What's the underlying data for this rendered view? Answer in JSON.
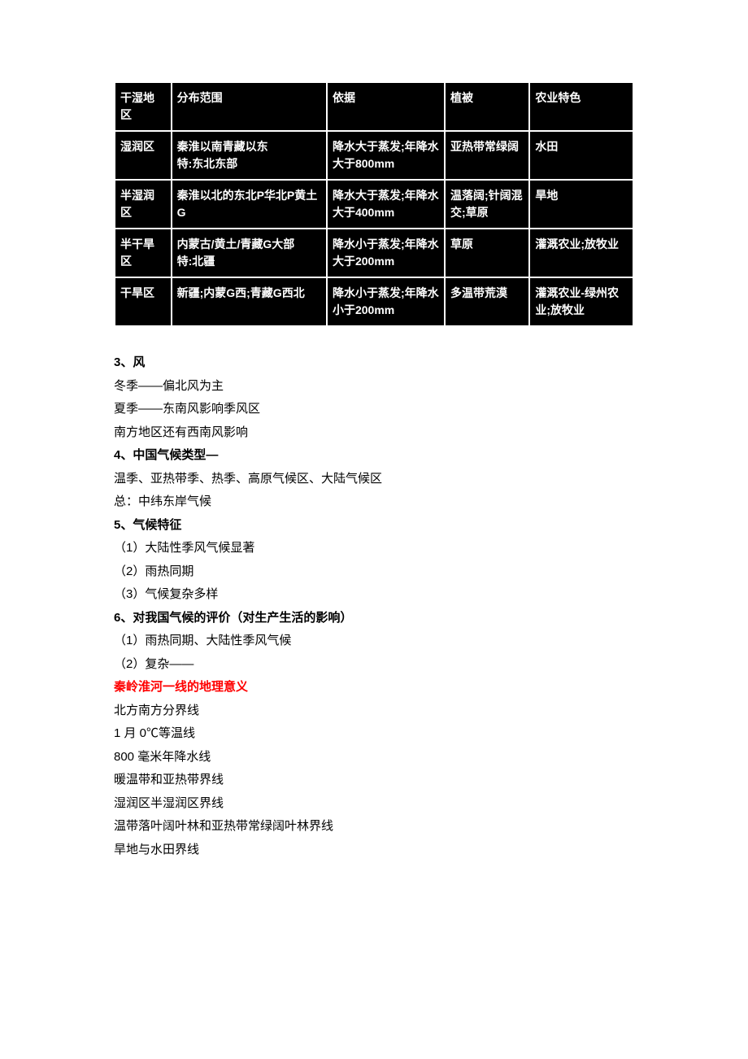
{
  "table": {
    "headers": [
      "干湿地区",
      "分布范围",
      "依据",
      "植被",
      "农业特色"
    ],
    "rows": [
      {
        "c1": "湿润区",
        "c2": "秦淮以南青藏以东\n特:东北东部",
        "c3": "降水大于蒸发;年降水大于800mm",
        "c4": "亚热带常绿阔",
        "c5": "水田"
      },
      {
        "c1": "半湿润区",
        "c2": "秦淮以北的东北P华北P黄土G",
        "c3": "降水大于蒸发;年降水大于400mm",
        "c4": "温落阔;针阔混交;草原",
        "c5": "旱地"
      },
      {
        "c1": "半干旱区",
        "c2": "内蒙古/黄土/青藏G大部\n特:北疆",
        "c3": "降水小于蒸发;年降水大于200mm",
        "c4": "草原",
        "c5": "灌溉农业;放牧业"
      },
      {
        "c1": "干旱区",
        "c2": "新疆;内蒙G西;青藏G西北",
        "c3": "降水小于蒸发;年降水小于200mm",
        "c4": "多温带荒漠",
        "c5": "灌溉农业-绿州农业;放牧业"
      }
    ]
  },
  "sections": {
    "s3": {
      "title": "3、风",
      "lines": [
        "冬季——偏北风为主",
        "夏季——东南风影响季风区",
        "南方地区还有西南风影响"
      ]
    },
    "s4": {
      "title": "4、中国气候类型—",
      "lines": [
        "温季、亚热带季、热季、高原气候区、大陆气候区",
        "总：中纬东岸气候"
      ]
    },
    "s5": {
      "title": "5、气候特征",
      "lines": [
        "（1）大陆性季风气候显著",
        "（2）雨热同期",
        "（3）气候复杂多样"
      ]
    },
    "s6": {
      "title": "6、对我国气候的评价（对生产生活的影响）",
      "lines": [
        "（1）雨热同期、大陆性季风气候",
        "（2）复杂——"
      ]
    },
    "red": {
      "title": "秦岭淮河一线的地理意义",
      "lines": [
        "北方南方分界线",
        "1 月 0℃等温线",
        "800 毫米年降水线",
        "暖温带和亚热带界线",
        "湿润区半湿润区界线",
        "温带落叶阔叶林和亚热带常绿阔叶林界线",
        "旱地与水田界线"
      ]
    }
  }
}
